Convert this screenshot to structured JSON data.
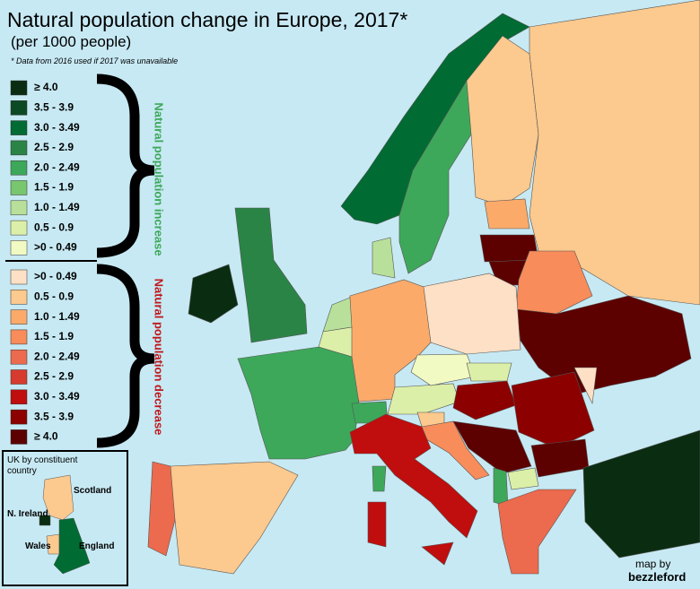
{
  "title": "Natural population change in Europe, 2017*",
  "subtitle": "(per 1000 people)",
  "footnote": "* Data from 2016 used if 2017 was unavailable",
  "legend": {
    "increase": {
      "label": "Natural population increase",
      "color": "#3da85a",
      "items": [
        {
          "label": "≥ 4.0",
          "color": "#0a2d12"
        },
        {
          "label": "3.5 - 3.9",
          "color": "#0c4a23"
        },
        {
          "label": "3.0 - 3.49",
          "color": "#006b33"
        },
        {
          "label": "2.5 - 2.9",
          "color": "#2a8446"
        },
        {
          "label": "2.0 - 2.49",
          "color": "#3da85a"
        },
        {
          "label": "1.5 - 1.9",
          "color": "#78c66e"
        },
        {
          "label": "1.0 - 1.49",
          "color": "#b8e09a"
        },
        {
          "label": "0.5 - 0.9",
          "color": "#dcefa8"
        },
        {
          "label": ">0 - 0.49",
          "color": "#f2fac4"
        }
      ]
    },
    "decrease": {
      "label": "Natural population decrease",
      "color": "#c0171b",
      "items": [
        {
          "label": ">0 - 0.49",
          "color": "#fde0c5"
        },
        {
          "label": "0.5 - 0.9",
          "color": "#fcc98e"
        },
        {
          "label": "1.0 - 1.49",
          "color": "#fbaa6a"
        },
        {
          "label": "1.5 - 1.9",
          "color": "#f88c5a"
        },
        {
          "label": "2.0 - 2.49",
          "color": "#ec6a4d"
        },
        {
          "label": "2.5 - 2.9",
          "color": "#d73a2e"
        },
        {
          "label": "3.0 - 3.49",
          "color": "#c00d0d"
        },
        {
          "label": "3.5 - 3.9",
          "color": "#8c0000"
        },
        {
          "label": "≥ 4.0",
          "color": "#5c0000"
        }
      ]
    }
  },
  "inset": {
    "title": "UK by constituent country",
    "labels": {
      "scotland": "Scotland",
      "nireland": "N. Ireland",
      "wales": "Wales",
      "england": "England"
    }
  },
  "credit": {
    "prefix": "map by",
    "author": "bezzleford"
  }
}
